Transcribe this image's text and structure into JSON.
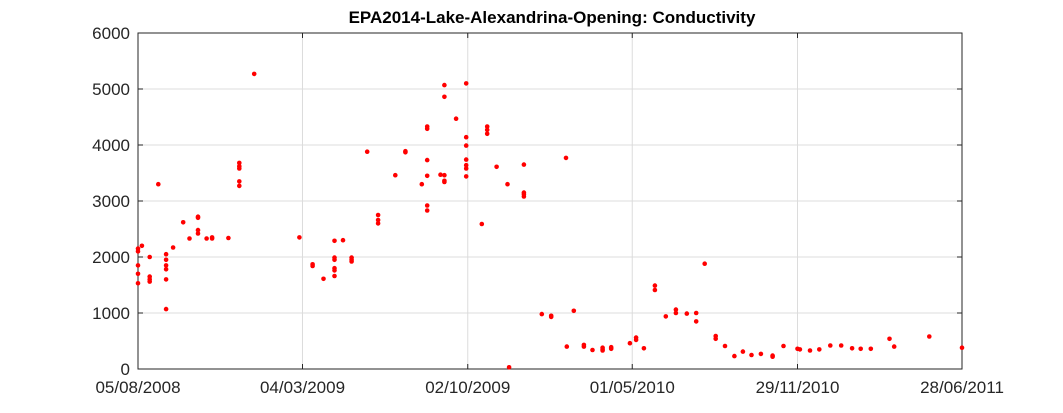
{
  "chart_data": {
    "type": "scatter",
    "title": "EPA2014-Lake-Alexandrina-Opening: Conductivity",
    "xlabel": "",
    "ylabel": "",
    "x_type": "date",
    "xlim": [
      "2008-08-05",
      "2011-06-28"
    ],
    "ylim": [
      0,
      6000
    ],
    "x_ticks": [
      {
        "date": "2008-08-05",
        "label": "05/08/2008"
      },
      {
        "date": "2009-03-04",
        "label": "04/03/2009"
      },
      {
        "date": "2009-10-02",
        "label": "02/10/2009"
      },
      {
        "date": "2010-05-01",
        "label": "01/05/2010"
      },
      {
        "date": "2010-11-29",
        "label": "29/11/2010"
      },
      {
        "date": "2011-06-28",
        "label": "28/06/2011"
      }
    ],
    "y_ticks": [
      0,
      1000,
      2000,
      3000,
      4000,
      5000,
      6000
    ],
    "grid": true,
    "marker_color": "#ff0000",
    "points": [
      [
        "2008-08-05",
        2150
      ],
      [
        "2008-08-05",
        2100
      ],
      [
        "2008-08-05",
        1850
      ],
      [
        "2008-08-05",
        1700
      ],
      [
        "2008-08-05",
        1530
      ],
      [
        "2008-08-10",
        2200
      ],
      [
        "2008-08-20",
        2000
      ],
      [
        "2008-08-20",
        1650
      ],
      [
        "2008-08-20",
        1600
      ],
      [
        "2008-08-20",
        1560
      ],
      [
        "2008-08-31",
        3300
      ],
      [
        "2008-09-10",
        2050
      ],
      [
        "2008-09-10",
        1950
      ],
      [
        "2008-09-10",
        1850
      ],
      [
        "2008-09-10",
        1780
      ],
      [
        "2008-09-10",
        1600
      ],
      [
        "2008-09-10",
        1070
      ],
      [
        "2008-09-19",
        2170
      ],
      [
        "2008-10-02",
        2620
      ],
      [
        "2008-10-10",
        2330
      ],
      [
        "2008-10-21",
        2720
      ],
      [
        "2008-10-21",
        2700
      ],
      [
        "2008-10-21",
        2480
      ],
      [
        "2008-10-21",
        2420
      ],
      [
        "2008-11-01",
        2330
      ],
      [
        "2008-11-08",
        2350
      ],
      [
        "2008-11-08",
        2330
      ],
      [
        "2008-11-29",
        2340
      ],
      [
        "2008-12-13",
        3680
      ],
      [
        "2008-12-13",
        3620
      ],
      [
        "2008-12-13",
        3580
      ],
      [
        "2008-12-13",
        3350
      ],
      [
        "2008-12-13",
        3270
      ],
      [
        "2009-01-01",
        5270
      ],
      [
        "2009-02-28",
        2350
      ],
      [
        "2009-03-17",
        1870
      ],
      [
        "2009-03-17",
        1840
      ],
      [
        "2009-03-31",
        1610
      ],
      [
        "2009-04-14",
        2290
      ],
      [
        "2009-04-14",
        1990
      ],
      [
        "2009-04-14",
        1950
      ],
      [
        "2009-04-14",
        1800
      ],
      [
        "2009-04-14",
        1760
      ],
      [
        "2009-04-14",
        1660
      ],
      [
        "2009-04-25",
        2300
      ],
      [
        "2009-05-06",
        1990
      ],
      [
        "2009-05-06",
        1950
      ],
      [
        "2009-05-06",
        1920
      ],
      [
        "2009-05-26",
        3880
      ],
      [
        "2009-06-09",
        2750
      ],
      [
        "2009-06-09",
        2660
      ],
      [
        "2009-06-09",
        2600
      ],
      [
        "2009-07-01",
        3460
      ],
      [
        "2009-07-14",
        3890
      ],
      [
        "2009-07-14",
        3870
      ],
      [
        "2009-08-04",
        3300
      ],
      [
        "2009-08-11",
        4330
      ],
      [
        "2009-08-11",
        4290
      ],
      [
        "2009-08-11",
        3730
      ],
      [
        "2009-08-11",
        3450
      ],
      [
        "2009-08-11",
        2920
      ],
      [
        "2009-08-11",
        2830
      ],
      [
        "2009-08-28",
        3470
      ],
      [
        "2009-09-02",
        5070
      ],
      [
        "2009-09-02",
        4860
      ],
      [
        "2009-09-02",
        3460
      ],
      [
        "2009-09-02",
        3360
      ],
      [
        "2009-09-02",
        3340
      ],
      [
        "2009-09-17",
        4470
      ],
      [
        "2009-09-30",
        5100
      ],
      [
        "2009-09-30",
        4140
      ],
      [
        "2009-09-30",
        3990
      ],
      [
        "2009-09-30",
        3740
      ],
      [
        "2009-09-30",
        3640
      ],
      [
        "2009-09-30",
        3580
      ],
      [
        "2009-09-30",
        3440
      ],
      [
        "2009-10-20",
        2590
      ],
      [
        "2009-10-27",
        4330
      ],
      [
        "2009-10-27",
        4270
      ],
      [
        "2009-10-27",
        4200
      ],
      [
        "2009-11-08",
        3610
      ],
      [
        "2009-11-22",
        3300
      ],
      [
        "2009-11-24",
        30
      ],
      [
        "2009-12-13",
        3650
      ],
      [
        "2009-12-13",
        3150
      ],
      [
        "2009-12-13",
        3120
      ],
      [
        "2009-12-13",
        3080
      ],
      [
        "2010-01-05",
        980
      ],
      [
        "2010-01-17",
        950
      ],
      [
        "2010-01-17",
        930
      ],
      [
        "2010-02-05",
        3770
      ],
      [
        "2010-02-06",
        400
      ],
      [
        "2010-02-15",
        1040
      ],
      [
        "2010-02-28",
        430
      ],
      [
        "2010-02-28",
        400
      ],
      [
        "2010-03-11",
        340
      ],
      [
        "2010-03-24",
        380
      ],
      [
        "2010-03-24",
        350
      ],
      [
        "2010-03-24",
        330
      ],
      [
        "2010-04-04",
        390
      ],
      [
        "2010-04-04",
        360
      ],
      [
        "2010-04-28",
        460
      ],
      [
        "2010-05-06",
        560
      ],
      [
        "2010-05-06",
        520
      ],
      [
        "2010-05-16",
        370
      ],
      [
        "2010-05-30",
        1490
      ],
      [
        "2010-05-30",
        1410
      ],
      [
        "2010-06-13",
        940
      ],
      [
        "2010-06-26",
        1060
      ],
      [
        "2010-06-26",
        1000
      ],
      [
        "2010-07-10",
        990
      ],
      [
        "2010-07-22",
        1000
      ],
      [
        "2010-07-22",
        850
      ],
      [
        "2010-08-02",
        1880
      ],
      [
        "2010-08-16",
        590
      ],
      [
        "2010-08-16",
        540
      ],
      [
        "2010-08-28",
        410
      ],
      [
        "2010-09-09",
        230
      ],
      [
        "2010-09-20",
        310
      ],
      [
        "2010-10-01",
        250
      ],
      [
        "2010-10-13",
        270
      ],
      [
        "2010-10-28",
        240
      ],
      [
        "2010-10-28",
        220
      ],
      [
        "2010-11-11",
        410
      ],
      [
        "2010-11-29",
        360
      ],
      [
        "2010-12-02",
        350
      ],
      [
        "2010-12-15",
        330
      ],
      [
        "2010-12-27",
        350
      ],
      [
        "2011-01-10",
        420
      ],
      [
        "2011-01-24",
        420
      ],
      [
        "2011-02-07",
        370
      ],
      [
        "2011-02-18",
        360
      ],
      [
        "2011-03-03",
        360
      ],
      [
        "2011-03-27",
        540
      ],
      [
        "2011-04-02",
        400
      ],
      [
        "2011-05-17",
        580
      ],
      [
        "2011-06-28",
        380
      ]
    ]
  }
}
